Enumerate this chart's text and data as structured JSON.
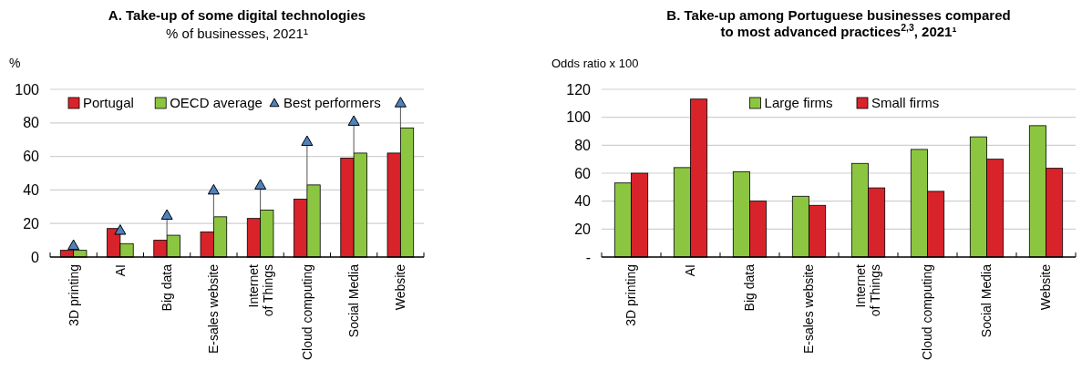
{
  "chart_data": [
    {
      "type": "bar",
      "title": "A. Take-up of some digital technologies",
      "subtitle": "% of businesses, 2021¹",
      "ylabel": "%",
      "categories": [
        "3D printing",
        "AI",
        "Big data",
        "E-sales website",
        "Internet\nof Things",
        "Cloud computing",
        "Social Media",
        "Website"
      ],
      "series": [
        {
          "name": "Portugal",
          "color": "#d9232a",
          "values": [
            4,
            17,
            10,
            15,
            23,
            34.5,
            59,
            62
          ]
        },
        {
          "name": "OECD average",
          "color": "#8cc641",
          "values": [
            4,
            8,
            13,
            24,
            28,
            43,
            62,
            77
          ]
        },
        {
          "name": "Best performers",
          "type": "scatter",
          "marker": "triangle",
          "color": "#4f81bd",
          "values": [
            7,
            16,
            25,
            40,
            43,
            69,
            81,
            92
          ],
          "errors": [
            null,
            null,
            [
              13,
              25
            ],
            [
              24,
              40
            ],
            [
              28,
              43
            ],
            [
              43,
              69
            ],
            [
              62,
              81
            ],
            [
              77,
              92
            ]
          ]
        }
      ],
      "ylim": [
        0,
        100
      ],
      "yticks": [
        0,
        20,
        40,
        60,
        80,
        100
      ],
      "grid": "y",
      "legend": "top left"
    },
    {
      "type": "bar",
      "title": "B. Take-up among Portuguese businesses compared to most advanced practices$^{2,3}$, 2021¹",
      "ylabel": "Odds ratio x 100",
      "categories": [
        "3D printing",
        "AI",
        "Big data",
        "E-sales website",
        "Internet\nof Things",
        "Cloud computing",
        "Social Media",
        "Website"
      ],
      "series": [
        {
          "name": "Large firms",
          "color": "#8cc641",
          "values": [
            53,
            64,
            61,
            43.5,
            67,
            77,
            86,
            94
          ]
        },
        {
          "name": "Small firms",
          "color": "#d9232a",
          "values": [
            60,
            113,
            40,
            37,
            49.5,
            47,
            70,
            63.5
          ]
        }
      ],
      "ylim": [
        0,
        120
      ],
      "yticks": [
        {
          "value": 0,
          "label": "-"
        },
        20,
        40,
        60,
        80,
        100,
        120
      ],
      "grid": "y",
      "legend": "top"
    }
  ]
}
